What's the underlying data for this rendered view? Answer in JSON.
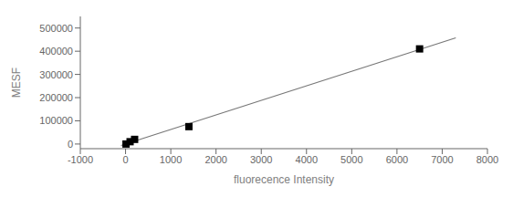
{
  "chart_data": {
    "type": "scatter",
    "xlabel": "fluorecence Intensity",
    "ylabel": "MESF",
    "xlim": [
      -1000,
      8000
    ],
    "xticks": [
      -1000,
      0,
      1000,
      2000,
      3000,
      4000,
      5000,
      6000,
      7000,
      8000
    ],
    "ylim": [
      -20000,
      550000
    ],
    "yticks": [
      0,
      100000,
      200000,
      300000,
      400000,
      500000
    ],
    "grid": false,
    "series": [
      {
        "type": "line",
        "x": [
          -100,
          7300
        ],
        "values": [
          -6195.62,
          457666.37
        ],
        "color": "#777777"
      },
      {
        "type": "scatter",
        "x": [
          10,
          100,
          200,
          1400,
          6500
        ],
        "values": [
          0,
          10000,
          20000,
          75000,
          410000
        ],
        "color": "#000000",
        "marker": "square"
      }
    ]
  }
}
